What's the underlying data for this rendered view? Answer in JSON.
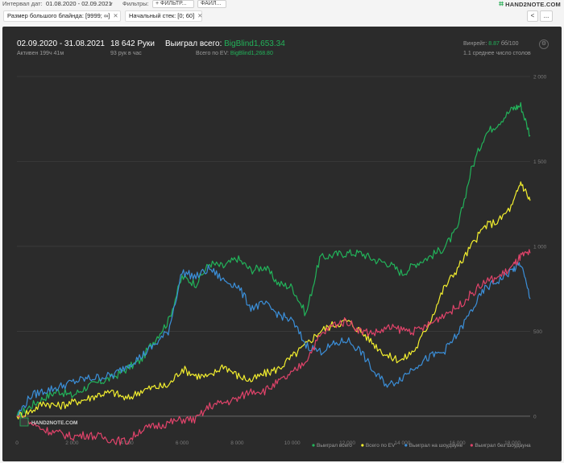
{
  "topbar": {
    "interval_label": "Интервал дат:",
    "interval_value": "01.08.2020 - 02.09.2021",
    "filters_label": "Фильтры:",
    "filter_button": "+ ФИЛЬТР...",
    "files_button": "ФАЙЛ...",
    "logo_text": "HAND2NOTE.COM"
  },
  "chips": [
    {
      "label": "Размер большого блайнда: [9999; ∞]"
    },
    {
      "label": "Начальный стек: [0; 60]"
    }
  ],
  "nav": {
    "prev": "<",
    "more": "..."
  },
  "summary": {
    "date_range": "02.09.2020 - 31.08.2021",
    "active_time": "Активен 199ч 41м",
    "hands": "18 642 Руки",
    "hands_per_hour": "93 рук в час",
    "won_label": "Выиграл всего:",
    "won_value": "BigBlind1,653.34",
    "ev_label": "Всего по EV:",
    "ev_value": "BigBlind1,268.80",
    "winrate_label": "Винрейт:",
    "winrate_value": "8.87",
    "winrate_suffix": "бб/100",
    "avg_tables": "1.1 среднее число столов"
  },
  "brand": "HAND2NOTE.COM",
  "colors": {
    "green": "#22b35a",
    "yellow": "#f2ee2e",
    "blue": "#3b8fd9",
    "pink": "#e0436a",
    "panel_bg": "#2b2b2b"
  },
  "chart_data": {
    "type": "line",
    "title": "",
    "xlabel": "",
    "ylabel": "",
    "xlim": [
      0,
      18642
    ],
    "ylim": [
      -100,
      2000
    ],
    "x_ticks": [
      0,
      2000,
      4000,
      6000,
      8000,
      10000,
      12000,
      14000,
      16000,
      18000
    ],
    "x_tick_labels": [
      "0",
      "2 000",
      "4 000",
      "6 000",
      "8 000",
      "10 000",
      "12 000",
      "14 000",
      "16 000",
      "18 000"
    ],
    "y_ticks": [
      0,
      500,
      1000,
      1500,
      2000
    ],
    "y_tick_labels": [
      "0",
      "500",
      "1 000",
      "1 500",
      "2 000"
    ],
    "legend_position": "bottom-right",
    "x": [
      0,
      500,
      1000,
      1500,
      2000,
      2500,
      3000,
      3500,
      4000,
      4500,
      5000,
      5500,
      6000,
      6500,
      7000,
      7500,
      8000,
      8500,
      9000,
      9500,
      10000,
      10500,
      11000,
      11500,
      12000,
      12500,
      13000,
      13500,
      14000,
      14500,
      15000,
      15500,
      16000,
      16500,
      17000,
      17500,
      18000,
      18300,
      18642
    ],
    "series": [
      {
        "name": "Выиграл всего",
        "color": "#22b35a",
        "values": [
          0,
          60,
          110,
          150,
          120,
          170,
          200,
          230,
          280,
          330,
          450,
          560,
          820,
          780,
          900,
          880,
          930,
          860,
          880,
          780,
          760,
          600,
          930,
          950,
          960,
          960,
          920,
          900,
          840,
          900,
          940,
          990,
          1100,
          1450,
          1660,
          1730,
          1810,
          1830,
          1653
        ]
      },
      {
        "name": "Всего по EV",
        "color": "#f2ee2e",
        "values": [
          0,
          30,
          80,
          60,
          80,
          100,
          130,
          140,
          100,
          150,
          170,
          180,
          280,
          240,
          230,
          300,
          240,
          210,
          250,
          280,
          350,
          420,
          500,
          540,
          560,
          500,
          420,
          350,
          330,
          400,
          560,
          750,
          870,
          1000,
          1120,
          1150,
          1240,
          1380,
          1269
        ]
      },
      {
        "name": "Выиграл на шоудауне",
        "color": "#3b8fd9",
        "values": [
          0,
          120,
          150,
          170,
          200,
          220,
          230,
          240,
          300,
          350,
          420,
          500,
          850,
          820,
          870,
          800,
          770,
          640,
          660,
          600,
          560,
          420,
          380,
          420,
          450,
          380,
          250,
          180,
          230,
          300,
          350,
          380,
          480,
          620,
          750,
          800,
          860,
          900,
          690
        ]
      },
      {
        "name": "Выиграл без шоудауна",
        "color": "#e0436a",
        "values": [
          0,
          -40,
          -80,
          -100,
          -120,
          -110,
          -120,
          -140,
          -150,
          -80,
          -60,
          -40,
          -20,
          -20,
          60,
          80,
          100,
          150,
          150,
          200,
          250,
          330,
          470,
          540,
          560,
          500,
          490,
          520,
          510,
          500,
          540,
          600,
          640,
          720,
          790,
          820,
          880,
          940,
          960
        ]
      }
    ]
  }
}
